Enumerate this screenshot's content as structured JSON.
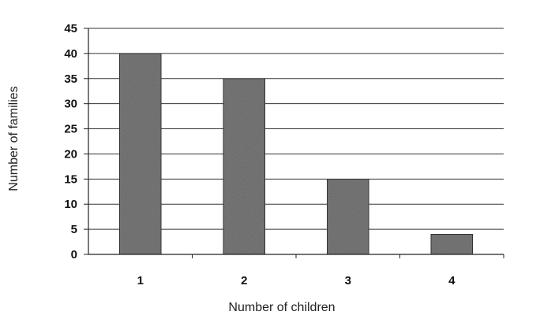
{
  "chart_data": {
    "type": "bar",
    "categories": [
      "1",
      "2",
      "3",
      "4"
    ],
    "values": [
      40,
      35,
      15,
      4
    ],
    "xlabel": "Number of children",
    "ylabel": "Number of families",
    "ylim": [
      0,
      45
    ],
    "yticks": [
      "0",
      "5",
      "10",
      "15",
      "20",
      "25",
      "30",
      "35",
      "40",
      "45"
    ],
    "grid": true,
    "legend": "none",
    "bar_color": "#7a7a7a",
    "gridline_color": "#333333"
  }
}
